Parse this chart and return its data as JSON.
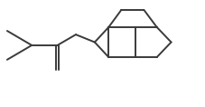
{
  "bg_color": "#ffffff",
  "line_color": "#3a3a3a",
  "line_width": 1.4,
  "fig_width": 2.27,
  "fig_height": 1.18,
  "dpi": 100,
  "xlim": [
    0,
    10
  ],
  "ylim": [
    0,
    5
  ]
}
